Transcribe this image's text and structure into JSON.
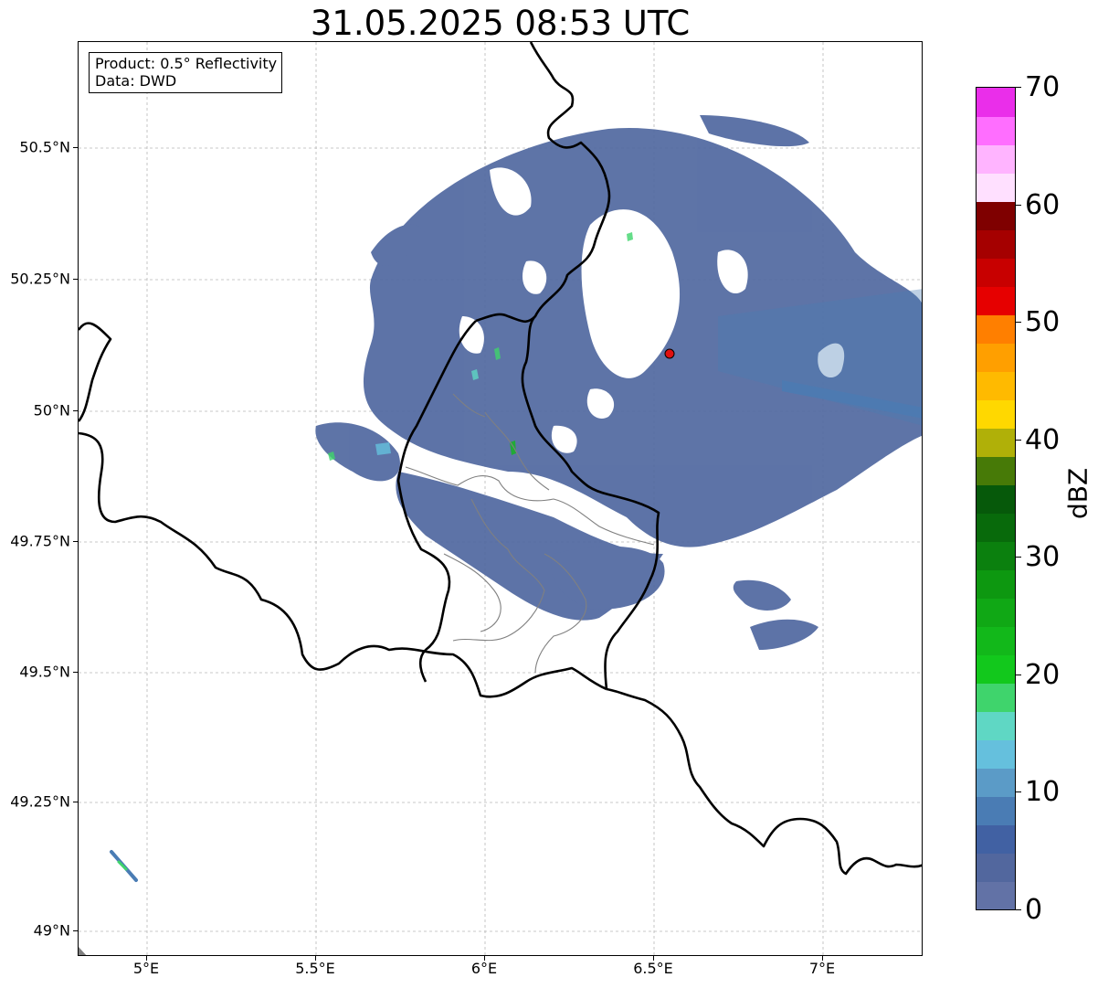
{
  "title": "31.05.2025 08:53 UTC",
  "info": {
    "product": "Product: 0.5° Reflectivity",
    "data": "Data: DWD"
  },
  "axes": {
    "lat_ticks": [
      "50.5°N",
      "50.25°N",
      "50°N",
      "49.75°N",
      "49.5°N",
      "49.25°N",
      "49°N"
    ],
    "lon_ticks": [
      "5°E",
      "5.5°E",
      "6°E",
      "6.5°E",
      "7°E"
    ]
  },
  "colorbar": {
    "unit": "dBZ",
    "range": [
      0,
      70
    ],
    "tick_labels": [
      "0",
      "10",
      "20",
      "30",
      "40",
      "50",
      "60",
      "70"
    ],
    "colors": [
      "#6272a6",
      "#52679e",
      "#4161a3",
      "#4a7cb4",
      "#5b9bc7",
      "#65c0dd",
      "#5fd7c4",
      "#3fd46c",
      "#12c81c",
      "#12b81a",
      "#10a815",
      "#0d9810",
      "#0b800e",
      "#086a0b",
      "#06590a",
      "#477a07",
      "#b0b008",
      "#ffd800",
      "#ffba00",
      "#ff9f00",
      "#ff7f00",
      "#e60000",
      "#c80000",
      "#a50000",
      "#7f0000",
      "#ffe0ff",
      "#ffb4ff",
      "#ff6eff",
      "#ea2eea"
    ]
  },
  "colors": {
    "radar_fill": "#5068a0",
    "radar_site": "#e01010",
    "country_border": "#000000",
    "admin_border": "#808080",
    "grid": "#b8b8b8"
  }
}
